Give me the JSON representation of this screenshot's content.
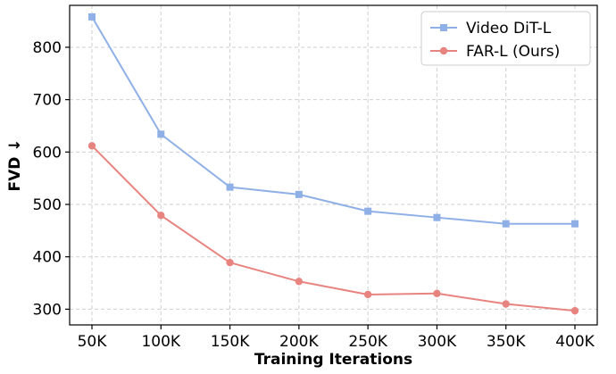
{
  "chart_data": {
    "type": "line",
    "x": [
      "50K",
      "100K",
      "150K",
      "200K",
      "250K",
      "300K",
      "350K",
      "400K"
    ],
    "xlabel": "Training Iterations",
    "ylabel": "FVD ↓",
    "ylim": [
      270,
      880
    ],
    "yticks": [
      300,
      400,
      500,
      600,
      700,
      800
    ],
    "grid": true,
    "legend_position": "top-right",
    "series": [
      {
        "name": "Video DiT-L",
        "color": "#8fb0e6",
        "marker": "square",
        "values": [
          858,
          634,
          533,
          519,
          487,
          475,
          463,
          463
        ]
      },
      {
        "name": "FAR-L (Ours)",
        "color": "#e8847f",
        "marker": "circle",
        "values": [
          612,
          479,
          389,
          353,
          328,
          330,
          310,
          297
        ]
      }
    ]
  }
}
